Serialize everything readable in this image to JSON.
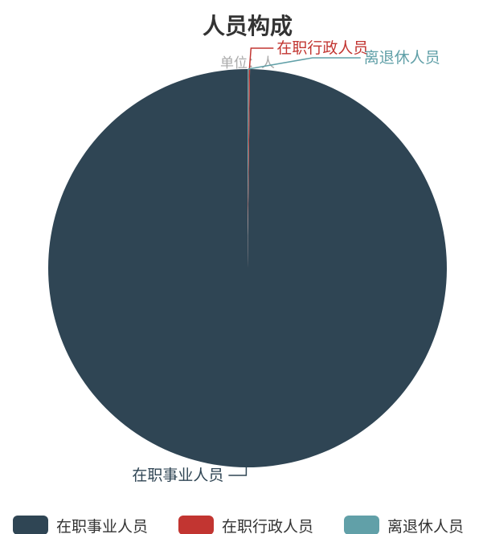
{
  "chart_data": {
    "type": "pie",
    "title": "人员构成",
    "subtitle": "单位：人",
    "legend_position": "bottom",
    "slices": [
      {
        "name": "在职事业人员",
        "value": 99.8,
        "color": "#2f4554"
      },
      {
        "name": "在职行政人员",
        "value": 0.1,
        "color": "#c23531"
      },
      {
        "name": "离退休人员",
        "value": 0.1,
        "color": "#61a0a8"
      }
    ]
  }
}
